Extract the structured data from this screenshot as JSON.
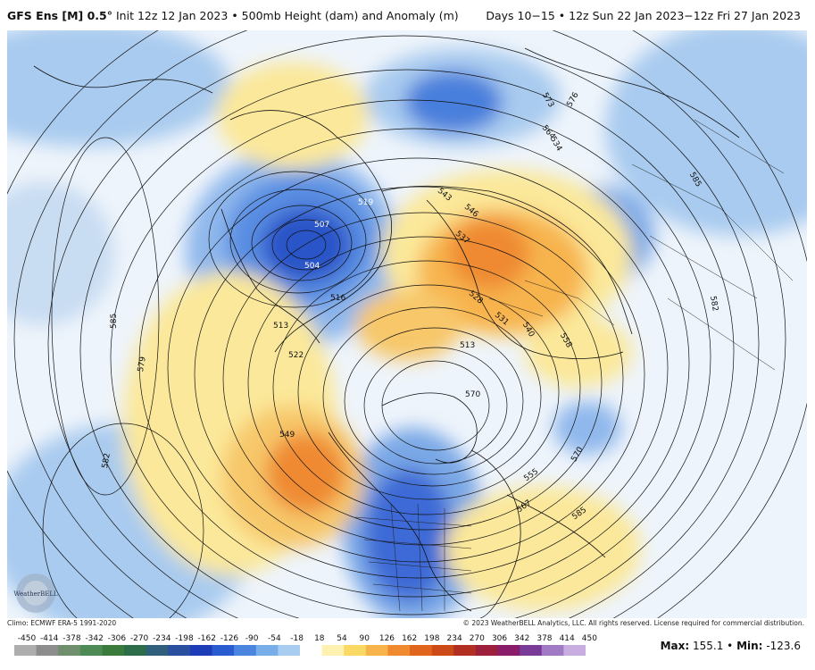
{
  "header": {
    "model": "GFS Ens [M] 0.5°",
    "init": "Init 12z 12 Jan 2023",
    "field": "500mb Height (dam) and Anomaly (m)",
    "valid": "Days 10−15 • 12z Sun 22 Jan 2023−12z Fri 27 Jan 2023"
  },
  "contour_labels": [
    "519",
    "507",
    "504",
    "516",
    "513",
    "522",
    "585",
    "579",
    "582",
    "549",
    "543",
    "546",
    "537",
    "528",
    "531",
    "540",
    "558",
    "576",
    "564",
    "573",
    "585",
    "582",
    "534",
    "513",
    "570",
    "555",
    "567",
    "585",
    "570"
  ],
  "footer": {
    "climo": "Climo: ECMWF ERA-5 1991-2020",
    "copyright": "© 2023 WeatherBELL Analytics, LLC. All rights reserved. License required for commercial distribution."
  },
  "colorbar": {
    "ticks": [
      "-450",
      "-414",
      "-378",
      "-342",
      "-306",
      "-270",
      "-234",
      "-198",
      "-162",
      "-126",
      "-90",
      "-54",
      "-18",
      "18",
      "54",
      "90",
      "126",
      "162",
      "198",
      "234",
      "270",
      "306",
      "342",
      "378",
      "414",
      "450"
    ],
    "colors": [
      "#aeaeae",
      "#8d8d8d",
      "#6f8f6f",
      "#4d8a55",
      "#3a7a3a",
      "#2e6d4a",
      "#2f5f7a",
      "#2b4fa0",
      "#1f3cb8",
      "#2a5bd0",
      "#4a86e0",
      "#77aee8",
      "#a8cdf0",
      "#ffffff",
      "#fff2b0",
      "#fbd965",
      "#f6b44a",
      "#f08a2e",
      "#e0641c",
      "#cc4a18",
      "#b23022",
      "#9c1f3c",
      "#8a1d6a",
      "#7a3a98",
      "#a07ac2",
      "#c8aee0"
    ]
  },
  "stats": {
    "max_label": "Max:",
    "max_value": "155.1",
    "separator": "•",
    "min_label": "Min:",
    "min_value": "-123.6"
  },
  "logo_text": "WeatherBELL",
  "colors": {
    "blue_light": "#a9cbef",
    "blue_mid": "#6aa0e6",
    "blue_dark": "#2b55c8",
    "yellow": "#fbe89a",
    "orange": "#f7b44e",
    "orange_dark": "#ef8a32"
  }
}
